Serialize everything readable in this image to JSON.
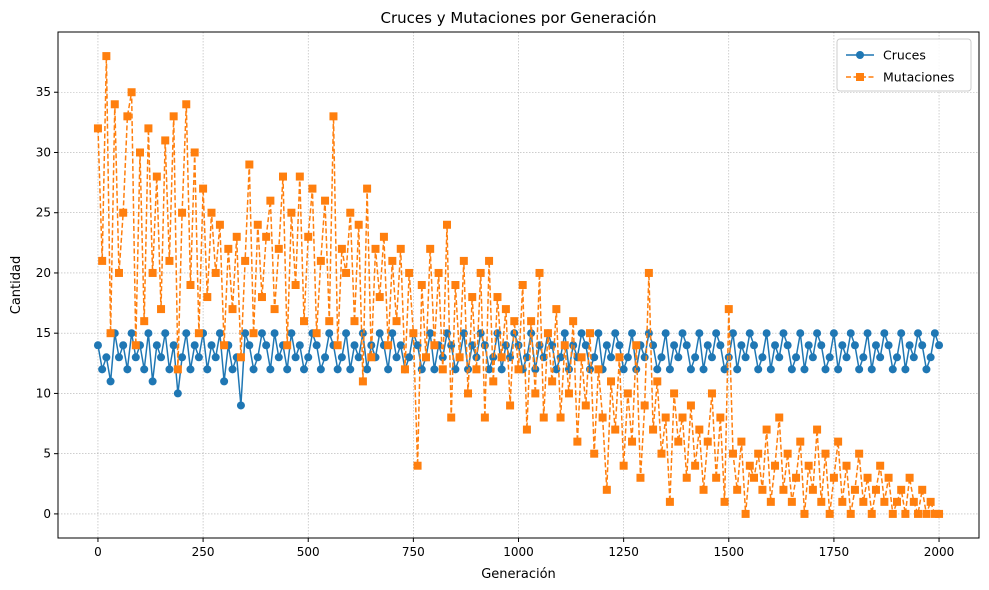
{
  "chart_data": {
    "type": "line",
    "title": "Cruces y Mutaciones por Generación",
    "xlabel": "Generación",
    "ylabel": "Cantidad",
    "xlim": [
      -95,
      2095
    ],
    "ylim": [
      -2,
      40
    ],
    "xticks": [
      0,
      250,
      500,
      750,
      1000,
      1250,
      1500,
      1750,
      2000
    ],
    "yticks": [
      0,
      5,
      10,
      15,
      20,
      25,
      30,
      35
    ],
    "grid": true,
    "legend_position": "top-right",
    "series_sampling_step": 10,
    "series": [
      {
        "name": "Cruces",
        "color": "#1f77b4",
        "line_style": "solid",
        "marker": "circle",
        "x": [
          0,
          10,
          20,
          30,
          40,
          50,
          60,
          70,
          80,
          90,
          100,
          110,
          120,
          130,
          140,
          150,
          160,
          170,
          180,
          190,
          200,
          210,
          220,
          230,
          240,
          250,
          260,
          270,
          280,
          290,
          300,
          310,
          320,
          330,
          340,
          350,
          360,
          370,
          380,
          390,
          400,
          410,
          420,
          430,
          440,
          450,
          460,
          470,
          480,
          490,
          500,
          510,
          520,
          530,
          540,
          550,
          560,
          570,
          580,
          590,
          600,
          610,
          620,
          630,
          640,
          650,
          660,
          670,
          680,
          690,
          700,
          710,
          720,
          730,
          740,
          750,
          760,
          770,
          780,
          790,
          800,
          810,
          820,
          830,
          840,
          850,
          860,
          870,
          880,
          890,
          900,
          910,
          920,
          930,
          940,
          950,
          960,
          970,
          980,
          990,
          1000,
          1010,
          1020,
          1030,
          1040,
          1050,
          1060,
          1070,
          1080,
          1090,
          1100,
          1110,
          1120,
          1130,
          1140,
          1150,
          1160,
          1170,
          1180,
          1190,
          1200,
          1210,
          1220,
          1230,
          1240,
          1250,
          1260,
          1270,
          1280,
          1290,
          1300,
          1310,
          1320,
          1330,
          1340,
          1350,
          1360,
          1370,
          1380,
          1390,
          1400,
          1410,
          1420,
          1430,
          1440,
          1450,
          1460,
          1470,
          1480,
          1490,
          1500,
          1510,
          1520,
          1530,
          1540,
          1550,
          1560,
          1570,
          1580,
          1590,
          1600,
          1610,
          1620,
          1630,
          1640,
          1650,
          1660,
          1670,
          1680,
          1690,
          1700,
          1710,
          1720,
          1730,
          1740,
          1750,
          1760,
          1770,
          1780,
          1790,
          1800,
          1810,
          1820,
          1830,
          1840,
          1850,
          1860,
          1870,
          1880,
          1890,
          1900,
          1910,
          1920,
          1930,
          1940,
          1950,
          1960,
          1970,
          1980,
          1990,
          2000
        ],
        "y": [
          14,
          12,
          13,
          11,
          15,
          13,
          14,
          12,
          15,
          13,
          14,
          12,
          15,
          11,
          14,
          13,
          15,
          12,
          14,
          10,
          13,
          15,
          12,
          14,
          13,
          15,
          12,
          14,
          13,
          15,
          11,
          14,
          12,
          13,
          9,
          15,
          14,
          12,
          13,
          15,
          14,
          12,
          15,
          13,
          14,
          12,
          15,
          13,
          14,
          12,
          13,
          15,
          14,
          12,
          13,
          15,
          14,
          12,
          13,
          15,
          12,
          14,
          13,
          15,
          12,
          14,
          13,
          15,
          14,
          12,
          15,
          13,
          14,
          12,
          13,
          15,
          14,
          12,
          13,
          15,
          12,
          14,
          13,
          15,
          14,
          12,
          13,
          15,
          12,
          14,
          13,
          15,
          14,
          12,
          13,
          15,
          12,
          14,
          13,
          15,
          14,
          12,
          13,
          15,
          12,
          14,
          13,
          15,
          14,
          12,
          13,
          15,
          12,
          14,
          13,
          15,
          14,
          12,
          13,
          15,
          12,
          14,
          13,
          15,
          14,
          12,
          13,
          15,
          12,
          14,
          13,
          15,
          14,
          12,
          13,
          15,
          12,
          14,
          13,
          15,
          14,
          12,
          13,
          15,
          12,
          14,
          13,
          15,
          14,
          12,
          13,
          15,
          12,
          14,
          13,
          15,
          14,
          12,
          13,
          15,
          12,
          14,
          13,
          15,
          14,
          12,
          13,
          15,
          12,
          14,
          13,
          15,
          14,
          12,
          13,
          15,
          12,
          14,
          13,
          15,
          14,
          12,
          13,
          15,
          12,
          14,
          13,
          15,
          14,
          12,
          13,
          15,
          12,
          14,
          13,
          15,
          14,
          12,
          13,
          15,
          14
        ]
      },
      {
        "name": "Mutaciones",
        "color": "#ff7f0e",
        "line_style": "dashed",
        "marker": "square",
        "x": [
          0,
          10,
          20,
          30,
          40,
          50,
          60,
          70,
          80,
          90,
          100,
          110,
          120,
          130,
          140,
          150,
          160,
          170,
          180,
          190,
          200,
          210,
          220,
          230,
          240,
          250,
          260,
          270,
          280,
          290,
          300,
          310,
          320,
          330,
          340,
          350,
          360,
          370,
          380,
          390,
          400,
          410,
          420,
          430,
          440,
          450,
          460,
          470,
          480,
          490,
          500,
          510,
          520,
          530,
          540,
          550,
          560,
          570,
          580,
          590,
          600,
          610,
          620,
          630,
          640,
          650,
          660,
          670,
          680,
          690,
          700,
          710,
          720,
          730,
          740,
          750,
          760,
          770,
          780,
          790,
          800,
          810,
          820,
          830,
          840,
          850,
          860,
          870,
          880,
          890,
          900,
          910,
          920,
          930,
          940,
          950,
          960,
          970,
          980,
          990,
          1000,
          1010,
          1020,
          1030,
          1040,
          1050,
          1060,
          1070,
          1080,
          1090,
          1100,
          1110,
          1120,
          1130,
          1140,
          1150,
          1160,
          1170,
          1180,
          1190,
          1200,
          1210,
          1220,
          1230,
          1240,
          1250,
          1260,
          1270,
          1280,
          1290,
          1300,
          1310,
          1320,
          1330,
          1340,
          1350,
          1360,
          1370,
          1380,
          1390,
          1400,
          1410,
          1420,
          1430,
          1440,
          1450,
          1460,
          1470,
          1480,
          1490,
          1500,
          1510,
          1520,
          1530,
          1540,
          1550,
          1560,
          1570,
          1580,
          1590,
          1600,
          1610,
          1620,
          1630,
          1640,
          1650,
          1660,
          1670,
          1680,
          1690,
          1700,
          1710,
          1720,
          1730,
          1740,
          1750,
          1760,
          1770,
          1780,
          1790,
          1800,
          1810,
          1820,
          1830,
          1840,
          1850,
          1860,
          1870,
          1880,
          1890,
          1900,
          1910,
          1920,
          1930,
          1940,
          1950,
          1960,
          1970,
          1980,
          1990,
          2000
        ],
        "y": [
          32,
          21,
          38,
          15,
          34,
          20,
          25,
          33,
          35,
          14,
          30,
          16,
          32,
          20,
          28,
          17,
          31,
          21,
          33,
          12,
          25,
          34,
          19,
          30,
          15,
          27,
          18,
          25,
          20,
          24,
          14,
          22,
          17,
          23,
          13,
          21,
          29,
          15,
          24,
          18,
          23,
          26,
          17,
          22,
          28,
          14,
          25,
          19,
          28,
          16,
          23,
          27,
          15,
          21,
          26,
          16,
          33,
          14,
          22,
          20,
          25,
          16,
          24,
          11,
          27,
          13,
          22,
          18,
          23,
          14,
          21,
          16,
          22,
          12,
          20,
          15,
          4,
          19,
          13,
          22,
          14,
          20,
          12,
          24,
          8,
          19,
          13,
          21,
          10,
          18,
          12,
          20,
          8,
          21,
          11,
          18,
          13,
          17,
          9,
          16,
          12,
          19,
          7,
          16,
          10,
          20,
          8,
          15,
          11,
          17,
          8,
          14,
          10,
          16,
          6,
          13,
          9,
          15,
          5,
          12,
          8,
          2,
          11,
          7,
          13,
          4,
          10,
          6,
          14,
          3,
          9,
          20,
          7,
          11,
          5,
          8,
          1,
          10,
          6,
          8,
          3,
          9,
          4,
          7,
          2,
          6,
          10,
          3,
          8,
          1,
          17,
          5,
          2,
          6,
          0,
          4,
          3,
          5,
          2,
          7,
          1,
          4,
          8,
          2,
          5,
          1,
          3,
          6,
          0,
          4,
          2,
          7,
          1,
          5,
          0,
          3,
          6,
          1,
          4,
          0,
          2,
          5,
          1,
          3,
          0,
          2,
          4,
          1,
          3,
          0,
          1,
          2,
          0,
          3,
          1,
          0,
          2,
          0,
          1,
          0,
          0
        ]
      }
    ]
  }
}
